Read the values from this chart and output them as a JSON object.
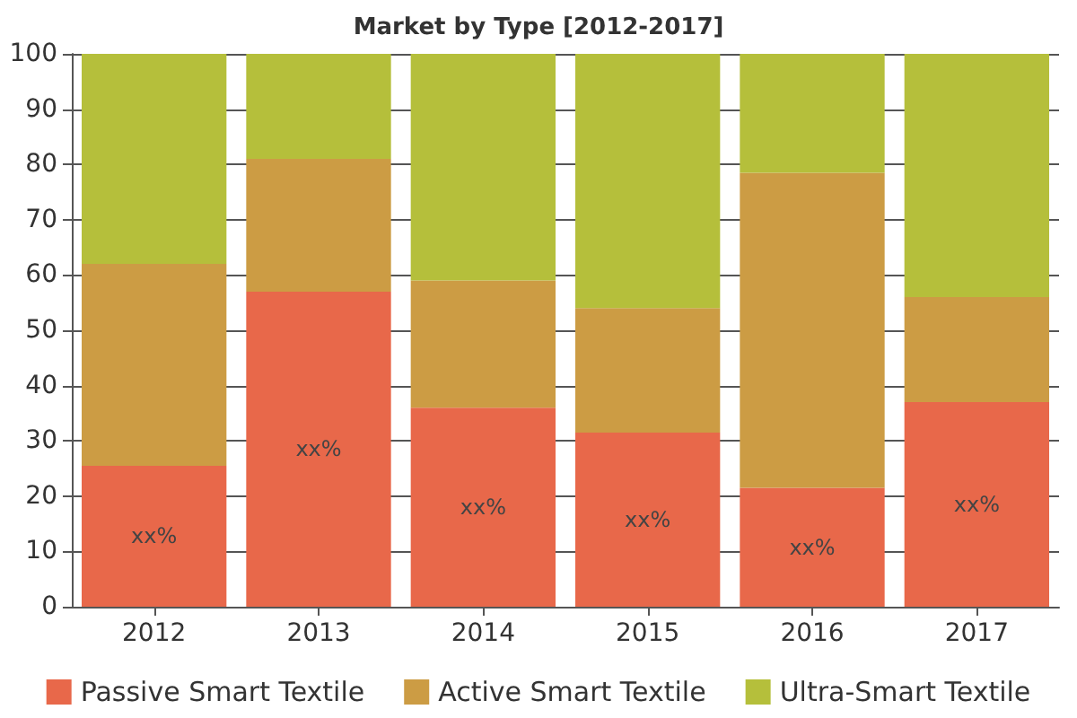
{
  "chart_data": {
    "type": "bar",
    "title": "Market by Type [2012-2017]",
    "categories": [
      "2012",
      "2013",
      "2014",
      "2015",
      "2016",
      "2017"
    ],
    "stacked": true,
    "series": [
      {
        "name": "Passive Smart Textile",
        "color": "#e8684a",
        "values": [
          25.5,
          57,
          36,
          31.5,
          21.5,
          37
        ],
        "value_labels": [
          "xx%",
          "xx%",
          "xx%",
          "xx%",
          "xx%",
          "xx%"
        ]
      },
      {
        "name": "Active Smart Textile",
        "color": "#cc9c44",
        "values": [
          36.5,
          24,
          23,
          22.5,
          57,
          19
        ]
      },
      {
        "name": "Ultra-Smart Textile",
        "color": "#b5bf3b",
        "values": [
          38,
          19,
          41,
          46,
          21.5,
          44
        ]
      }
    ],
    "ylim": [
      0,
      100
    ],
    "yticks": [
      0,
      10,
      20,
      30,
      40,
      50,
      60,
      70,
      80,
      90,
      100
    ],
    "grid": "y",
    "legend": "bottom"
  }
}
